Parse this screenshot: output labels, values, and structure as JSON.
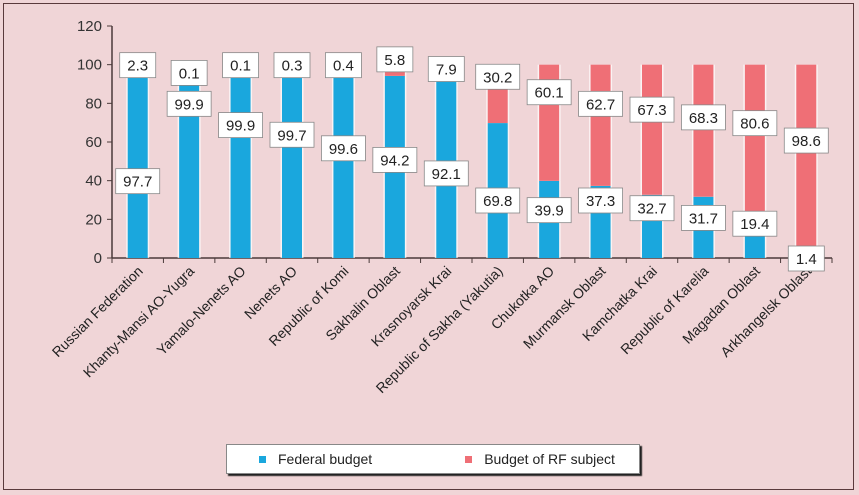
{
  "chart_data": {
    "type": "bar",
    "stacked": true,
    "title": "",
    "xlabel": "",
    "ylabel": "",
    "ylim": [
      0,
      120
    ],
    "yticks": [
      0,
      20,
      40,
      60,
      80,
      100,
      120
    ],
    "grid": false,
    "legend_position": "bottom",
    "categories": [
      "Russian Federation",
      "Khanty-Mansi AO-Yugra",
      "Yamalo-Nenets AO",
      "Nenets AO",
      "Republic of Komi",
      "Sakhalin Oblast",
      "Krasnoyarsk Krai",
      "Republic of Sakha (Yakutia)",
      "Chukotka AO",
      "Murmansk Oblast",
      "Kamchatka Krai",
      "Republic of Karelia",
      "Magadan Oblast",
      "Arkhangelsk Oblast"
    ],
    "series": [
      {
        "name": "Federal budget",
        "color": "#1aa7dd",
        "values": [
          97.7,
          99.9,
          99.9,
          99.7,
          99.6,
          94.2,
          92.1,
          69.8,
          39.9,
          37.3,
          32.7,
          31.7,
          19.4,
          1.4
        ]
      },
      {
        "name": "Budget of RF subject",
        "color": "#ef6f76",
        "values": [
          2.3,
          0.1,
          0.1,
          0.3,
          0.4,
          5.8,
          7.9,
          30.2,
          60.1,
          62.7,
          67.3,
          68.3,
          80.6,
          98.6
        ]
      }
    ]
  }
}
